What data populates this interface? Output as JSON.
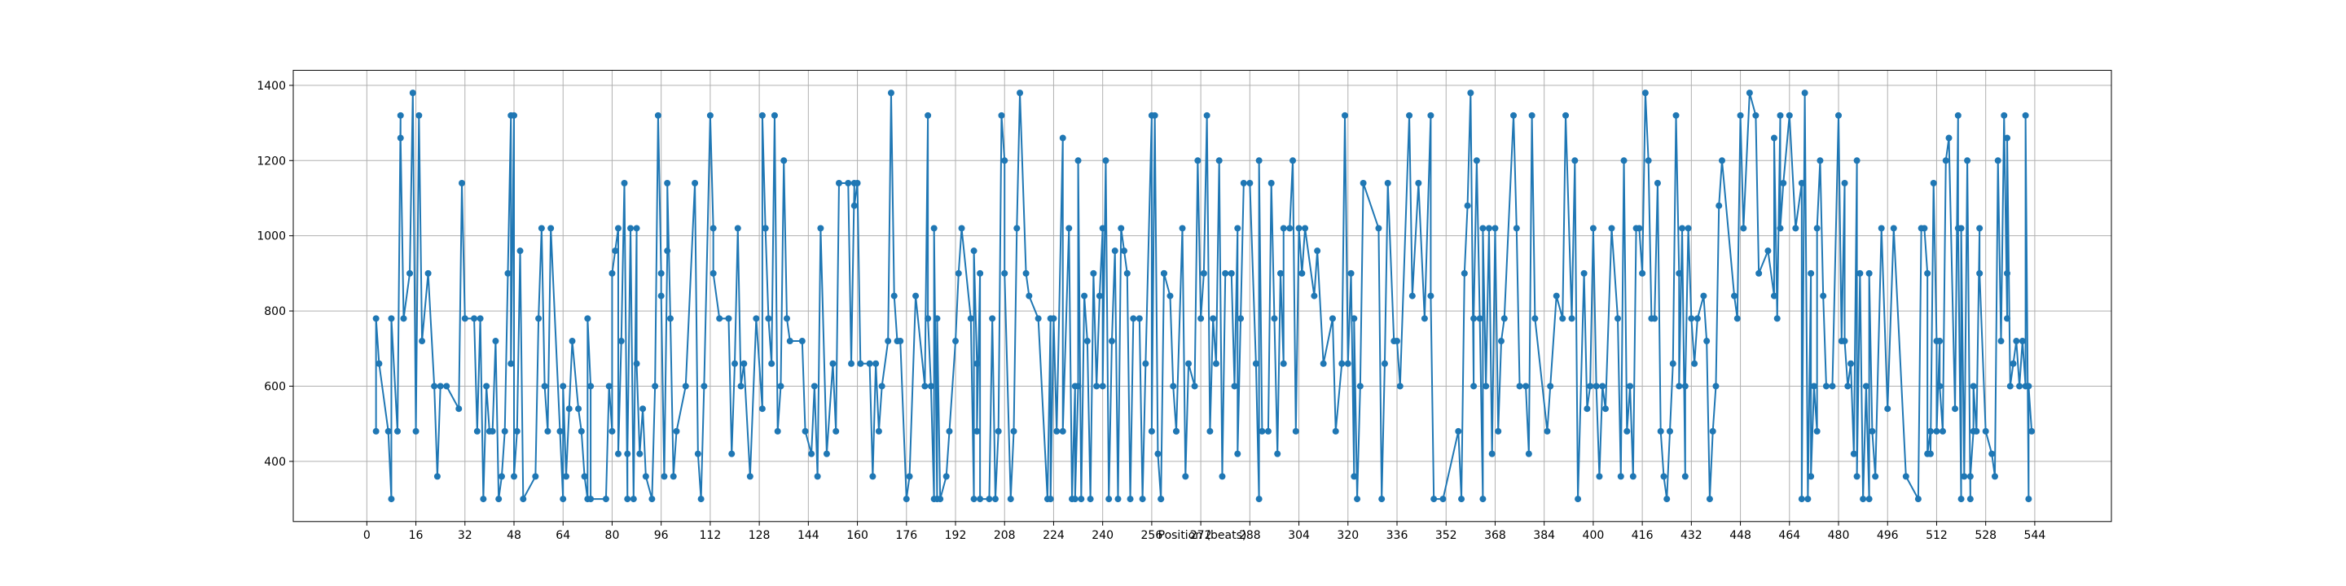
{
  "chart_data": {
    "type": "line",
    "xlabel": "Position (beats)",
    "color": "#1f77b4",
    "grid": true,
    "markers": true,
    "xlim": [
      -24,
      569
    ],
    "ylim": [
      240,
      1440
    ],
    "xticks": [
      0,
      16,
      32,
      48,
      64,
      80,
      96,
      112,
      128,
      144,
      160,
      176,
      192,
      208,
      224,
      240,
      256,
      272,
      288,
      304,
      320,
      336,
      352,
      368,
      384,
      400,
      416,
      432,
      448,
      464,
      480,
      496,
      512,
      528,
      544
    ],
    "yticks": [
      400,
      600,
      800,
      1000,
      1200,
      1400
    ],
    "x": [
      3,
      3,
      4,
      7,
      8,
      8,
      10,
      11,
      11,
      12,
      14,
      15,
      16,
      17,
      18,
      20,
      22,
      23,
      24,
      26,
      30,
      31,
      32,
      35,
      36,
      37,
      38,
      39,
      40,
      41,
      42,
      43,
      44,
      45,
      46,
      47,
      47,
      48,
      48,
      49,
      50,
      51,
      55,
      56,
      57,
      58,
      59,
      60,
      63,
      64,
      64,
      65,
      66,
      67,
      69,
      70,
      71,
      72,
      72,
      73,
      73,
      78,
      79,
      80,
      80,
      81,
      82,
      82,
      83,
      84,
      85,
      85,
      86,
      87,
      88,
      88,
      89,
      90,
      91,
      93,
      94,
      95,
      96,
      96,
      97,
      98,
      98,
      99,
      100,
      101,
      104,
      107,
      108,
      109,
      110,
      112,
      113,
      113,
      115,
      118,
      119,
      120,
      121,
      122,
      123,
      125,
      127,
      129,
      129,
      130,
      130,
      131,
      132,
      133,
      134,
      135,
      136,
      137,
      138,
      142,
      143,
      145,
      146,
      147,
      148,
      150,
      152,
      153,
      154,
      157,
      158,
      159,
      159,
      160,
      161,
      164,
      165,
      166,
      167,
      168,
      170,
      171,
      172,
      173,
      174,
      176,
      177,
      179,
      182,
      183,
      183,
      184,
      185,
      185,
      186,
      186,
      187,
      189,
      190,
      192,
      193,
      194,
      197,
      198,
      198,
      199,
      199,
      200,
      200,
      203,
      204,
      205,
      206,
      207,
      208,
      208,
      210,
      211,
      212,
      213,
      215,
      216,
      219,
      222,
      223,
      223,
      224,
      225,
      227,
      227,
      229,
      230,
      231,
      231,
      232,
      232,
      233,
      234,
      235,
      236,
      237,
      238,
      239,
      240,
      240,
      241,
      242,
      243,
      244,
      245,
      246,
      247,
      248,
      249,
      250,
      252,
      253,
      254,
      256,
      256,
      257,
      258,
      259,
      259,
      260,
      260,
      262,
      263,
      264,
      264,
      266,
      267,
      268,
      270,
      271,
      272,
      273,
      274,
      275,
      276,
      277,
      278,
      279,
      280,
      282,
      283,
      284,
      284,
      285,
      286,
      288,
      290,
      291,
      291,
      292,
      294,
      295,
      296,
      297,
      298,
      299,
      299,
      301,
      302,
      303,
      304,
      305,
      306,
      309,
      310,
      312,
      315,
      316,
      318,
      319,
      320,
      321,
      322,
      322,
      323,
      324,
      325,
      330,
      331,
      332,
      333,
      335,
      336,
      337,
      340,
      341,
      343,
      345,
      347,
      347,
      348,
      351,
      356,
      357,
      358,
      359,
      360,
      361,
      361,
      362,
      363,
      364,
      364,
      365,
      366,
      367,
      368,
      369,
      370,
      371,
      374,
      375,
      376,
      378,
      379,
      380,
      381,
      385,
      386,
      388,
      390,
      391,
      393,
      394,
      395,
      397,
      398,
      399,
      400,
      401,
      402,
      403,
      404,
      406,
      408,
      409,
      410,
      411,
      412,
      413,
      414,
      415,
      416,
      417,
      418,
      419,
      420,
      421,
      422,
      423,
      424,
      425,
      426,
      427,
      428,
      428,
      429,
      430,
      430,
      431,
      432,
      433,
      434,
      436,
      437,
      438,
      439,
      440,
      441,
      442,
      446,
      447,
      448,
      449,
      451,
      453,
      454,
      457,
      459,
      459,
      460,
      461,
      461,
      462,
      464,
      466,
      468,
      468,
      469,
      470,
      471,
      471,
      472,
      473,
      473,
      474,
      475,
      476,
      478,
      480,
      481,
      482,
      482,
      483,
      484,
      485,
      486,
      486,
      487,
      488,
      489,
      490,
      490,
      491,
      492,
      494,
      496,
      498,
      502,
      506,
      507,
      508,
      509,
      509,
      510,
      510,
      511,
      512,
      512,
      513,
      513,
      514,
      515,
      516,
      518,
      519,
      519,
      520,
      520,
      521,
      522,
      523,
      523,
      524,
      524,
      525,
      526,
      526,
      528,
      530,
      531,
      532,
      533,
      534,
      535,
      535,
      535,
      536,
      537,
      538,
      539,
      540,
      541,
      541,
      542,
      542,
      543
    ],
    "values": [
      480,
      780,
      660,
      480,
      300,
      780,
      480,
      1320,
      1260,
      780,
      900,
      1380,
      480,
      1320,
      720,
      900,
      600,
      360,
      600,
      600,
      540,
      1140,
      780,
      780,
      480,
      780,
      300,
      600,
      480,
      480,
      720,
      300,
      360,
      480,
      900,
      1320,
      660,
      1320,
      360,
      480,
      960,
      300,
      360,
      780,
      1020,
      600,
      480,
      1020,
      480,
      300,
      600,
      360,
      540,
      720,
      540,
      480,
      360,
      300,
      780,
      600,
      300,
      300,
      600,
      480,
      900,
      960,
      1020,
      420,
      720,
      1140,
      300,
      420,
      1020,
      300,
      1020,
      660,
      420,
      540,
      360,
      300,
      600,
      1320,
      900,
      840,
      360,
      960,
      1140,
      780,
      360,
      480,
      600,
      1140,
      420,
      300,
      600,
      1320,
      1020,
      900,
      780,
      780,
      420,
      660,
      1020,
      600,
      660,
      360,
      780,
      540,
      1320,
      1020,
      1020,
      780,
      660,
      1320,
      480,
      600,
      1200,
      780,
      720,
      720,
      480,
      420,
      600,
      360,
      1020,
      420,
      660,
      480,
      1140,
      1140,
      660,
      1140,
      1080,
      1140,
      660,
      660,
      360,
      660,
      480,
      600,
      720,
      1380,
      840,
      720,
      720,
      300,
      360,
      840,
      600,
      1320,
      780,
      600,
      300,
      1020,
      300,
      780,
      300,
      360,
      480,
      720,
      900,
      1020,
      780,
      300,
      960,
      660,
      480,
      900,
      300,
      300,
      780,
      300,
      480,
      1320,
      1200,
      900,
      300,
      480,
      1020,
      1380,
      900,
      840,
      780,
      300,
      780,
      300,
      780,
      480,
      1260,
      480,
      1020,
      300,
      600,
      300,
      600,
      1200,
      300,
      840,
      720,
      300,
      900,
      600,
      840,
      1020,
      600,
      1200,
      300,
      720,
      960,
      300,
      1020,
      960,
      900,
      300,
      780,
      780,
      300,
      660,
      1320,
      480,
      1320,
      420,
      300,
      300,
      900,
      900,
      840,
      600,
      480,
      480,
      1020,
      360,
      660,
      600,
      1200,
      780,
      900,
      1320,
      480,
      780,
      660,
      1200,
      360,
      900,
      900,
      600,
      1020,
      420,
      780,
      1140,
      1140,
      660,
      300,
      1200,
      480,
      480,
      1140,
      780,
      420,
      900,
      660,
      1020,
      1020,
      1200,
      480,
      1020,
      900,
      1020,
      840,
      960,
      660,
      780,
      480,
      660,
      1320,
      660,
      900,
      360,
      780,
      300,
      600,
      1140,
      1020,
      300,
      660,
      1140,
      720,
      720,
      600,
      1320,
      840,
      1140,
      780,
      1320,
      840,
      300,
      300,
      480,
      300,
      900,
      1080,
      1380,
      600,
      780,
      1200,
      780,
      300,
      1020,
      600,
      1020,
      420,
      1020,
      480,
      720,
      780,
      1320,
      1020,
      600,
      600,
      420,
      1320,
      780,
      480,
      600,
      840,
      780,
      1320,
      780,
      1200,
      300,
      900,
      540,
      600,
      1020,
      600,
      360,
      600,
      540,
      1020,
      780,
      360,
      1200,
      480,
      600,
      360,
      1020,
      1020,
      900,
      1380,
      1200,
      780,
      780,
      1140,
      480,
      360,
      300,
      480,
      660,
      1320,
      900,
      600,
      1020,
      360,
      600,
      1020,
      780,
      660,
      780,
      840,
      720,
      300,
      480,
      600,
      1080,
      1200,
      840,
      780,
      1320,
      1020,
      1380,
      1320,
      900,
      960,
      840,
      1260,
      780,
      1320,
      1020,
      1140,
      1320,
      1020,
      1140,
      300,
      1380,
      300,
      900,
      360,
      600,
      480,
      1020,
      1200,
      840,
      600,
      600,
      1320,
      720,
      1140,
      720,
      600,
      660,
      420,
      1200,
      360,
      900,
      300,
      600,
      300,
      900,
      480,
      360,
      1020,
      540,
      1020,
      360,
      300,
      1020,
      1020,
      900,
      420,
      480,
      420,
      1140,
      720,
      480,
      720,
      600,
      480,
      1200,
      1260,
      540,
      1320,
      1020,
      300,
      1020,
      360,
      1200,
      300,
      360,
      480,
      600,
      480,
      1020,
      900,
      480,
      420,
      360,
      1200,
      720,
      1320,
      780,
      900,
      1260,
      600,
      660,
      720,
      600,
      720,
      600,
      1320,
      300,
      600,
      480
    ]
  }
}
